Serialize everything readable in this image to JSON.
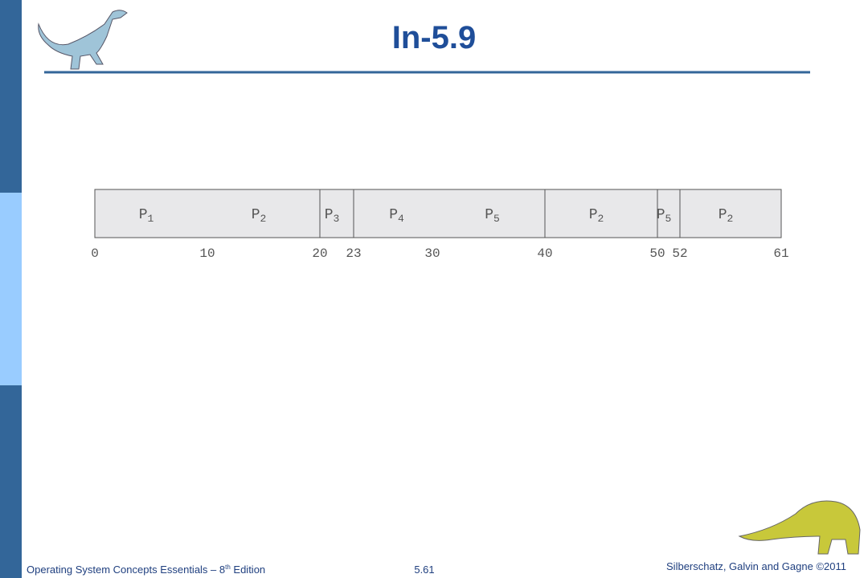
{
  "header": {
    "title": "In-5.9"
  },
  "gantt": {
    "boxes": [
      {
        "start": 0,
        "end": 20,
        "labels": [
          {
            "name": "P",
            "sub": "1"
          },
          {
            "name": "P",
            "sub": "2"
          }
        ]
      },
      {
        "start": 20,
        "end": 23,
        "labels": [
          {
            "name": "P",
            "sub": "3"
          }
        ]
      },
      {
        "start": 23,
        "end": 40,
        "labels": [
          {
            "name": "P",
            "sub": "4"
          },
          {
            "name": "P",
            "sub": "5"
          }
        ]
      },
      {
        "start": 40,
        "end": 50,
        "labels": [
          {
            "name": "P",
            "sub": "2"
          }
        ]
      },
      {
        "start": 50,
        "end": 52,
        "labels": [
          {
            "name": "P",
            "sub": "5"
          }
        ]
      },
      {
        "start": 52,
        "end": 61,
        "labels": [
          {
            "name": "P",
            "sub": "2"
          }
        ]
      }
    ],
    "xlim": [
      0,
      61
    ],
    "ticks": [
      0,
      10,
      20,
      23,
      30,
      40,
      50,
      52,
      61
    ]
  },
  "footer": {
    "left": {
      "before": "Operating System Concepts Essentials – 8",
      "sup": "th",
      "after": " Edition"
    },
    "center": "5.61",
    "right": "Silberschatz, Galvin and Gagne ©2011"
  }
}
